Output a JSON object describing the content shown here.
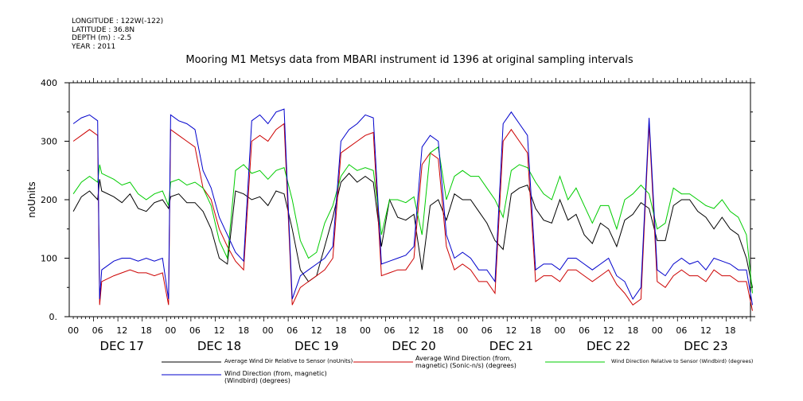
{
  "header": {
    "longitude": "LONGITUDE : 122W(-122)",
    "latitude": "LATITUDE : 36.8N",
    "depth": "DEPTH (m) : -2.5",
    "year": "YEAR : 2011"
  },
  "chart_data": {
    "type": "line",
    "title": "Mooring M1 Metsys data from MBARI instrument id 1396 at original sampling intervals",
    "ylabel": "noUnits",
    "xlabel": "",
    "ylim": [
      0,
      400
    ],
    "yticks": [
      0,
      100,
      200,
      300,
      400
    ],
    "ytick_labels": [
      "0.",
      "100",
      "200",
      "300",
      "400"
    ],
    "xlim": [
      0,
      168
    ],
    "hour_ticks": [
      "00",
      "06",
      "12",
      "18",
      "00",
      "06",
      "12",
      "18",
      "00",
      "06",
      "12",
      "18",
      "00",
      "06",
      "12",
      "18",
      "00",
      "06",
      "12",
      "18",
      "00",
      "06",
      "12",
      "18",
      "00",
      "06",
      "12",
      "18"
    ],
    "day_labels": [
      "DEC 17",
      "DEC 18",
      "DEC 19",
      "DEC 20",
      "DEC 21",
      "DEC 22",
      "DEC 23"
    ],
    "grid": false,
    "legend_position": "bottom",
    "series": [
      {
        "name": "Average Wind Dir Relative to Sensor (noUnits)",
        "color": "#000000",
        "x": [
          0,
          2,
          4,
          6,
          6.5,
          7,
          10,
          12,
          14,
          16,
          18,
          20,
          22,
          23.5,
          24,
          26,
          28,
          30,
          32,
          34,
          36,
          38,
          40,
          42,
          44,
          46,
          48,
          50,
          52,
          54,
          56,
          58,
          60,
          62,
          64,
          66,
          68,
          70,
          72,
          74,
          76,
          78,
          80,
          82,
          84,
          86,
          88,
          90,
          92,
          94,
          96,
          98,
          100,
          102,
          104,
          106,
          108,
          110,
          112,
          114,
          116,
          118,
          120,
          122,
          124,
          126,
          128,
          130,
          132,
          134,
          136,
          138,
          140,
          142,
          144,
          146,
          148,
          150,
          152,
          154,
          156,
          158,
          160,
          162,
          164,
          166,
          167.5
        ],
        "values": [
          180,
          205,
          215,
          200,
          235,
          215,
          205,
          195,
          210,
          185,
          180,
          195,
          200,
          185,
          205,
          210,
          195,
          195,
          180,
          150,
          100,
          90,
          215,
          210,
          200,
          205,
          190,
          215,
          210,
          150,
          80,
          60,
          70,
          120,
          170,
          230,
          245,
          230,
          240,
          230,
          120,
          200,
          170,
          165,
          175,
          80,
          190,
          200,
          165,
          210,
          200,
          200,
          180,
          160,
          130,
          115,
          210,
          220,
          225,
          185,
          165,
          160,
          200,
          165,
          175,
          140,
          125,
          160,
          150,
          120,
          165,
          175,
          195,
          185,
          130,
          130,
          190,
          200,
          200,
          180,
          170,
          150,
          170,
          150,
          140,
          100,
          50
        ]
      },
      {
        "name": "Average Wind Direction (from, magnetic) (Sonic-n/s) (degrees)",
        "color": "#cc0000",
        "x": [
          0,
          2,
          4,
          6,
          6.5,
          7,
          10,
          12,
          14,
          16,
          18,
          20,
          22,
          23.5,
          24,
          26,
          28,
          30,
          32,
          34,
          36,
          38,
          40,
          42,
          44,
          46,
          48,
          50,
          52,
          54,
          56,
          58,
          60,
          62,
          64,
          66,
          68,
          70,
          72,
          74,
          76,
          78,
          80,
          82,
          84,
          86,
          88,
          90,
          92,
          94,
          96,
          98,
          100,
          102,
          104,
          106,
          108,
          110,
          112,
          114,
          116,
          118,
          120,
          122,
          124,
          126,
          128,
          130,
          132,
          134,
          136,
          138,
          140,
          142,
          144,
          146,
          148,
          150,
          152,
          154,
          156,
          158,
          160,
          162,
          164,
          166,
          167.5
        ],
        "values": [
          300,
          310,
          320,
          310,
          20,
          60,
          70,
          75,
          80,
          75,
          75,
          70,
          75,
          20,
          320,
          310,
          300,
          290,
          220,
          200,
          150,
          120,
          95,
          80,
          300,
          310,
          300,
          320,
          330,
          20,
          50,
          60,
          70,
          80,
          100,
          280,
          290,
          300,
          310,
          315,
          70,
          75,
          80,
          80,
          100,
          260,
          280,
          270,
          120,
          80,
          90,
          80,
          60,
          60,
          40,
          300,
          320,
          300,
          280,
          60,
          70,
          70,
          60,
          80,
          80,
          70,
          60,
          70,
          80,
          55,
          40,
          20,
          30,
          330,
          60,
          50,
          70,
          80,
          70,
          70,
          60,
          80,
          70,
          70,
          60,
          60,
          10
        ]
      },
      {
        "name": "Wind Direction Relative to Sensor (Windbird) (degrees)",
        "color": "#00cc00",
        "x": [
          0,
          2,
          4,
          6,
          6.5,
          7,
          10,
          12,
          14,
          16,
          18,
          20,
          22,
          23.5,
          24,
          26,
          28,
          30,
          32,
          34,
          36,
          38,
          40,
          42,
          44,
          46,
          48,
          50,
          52,
          54,
          56,
          58,
          60,
          62,
          64,
          66,
          68,
          70,
          72,
          74,
          76,
          78,
          80,
          82,
          84,
          86,
          88,
          90,
          92,
          94,
          96,
          98,
          100,
          102,
          104,
          106,
          108,
          110,
          112,
          114,
          116,
          118,
          120,
          122,
          124,
          126,
          128,
          130,
          132,
          134,
          136,
          138,
          140,
          142,
          144,
          146,
          148,
          150,
          152,
          154,
          156,
          158,
          160,
          162,
          164,
          166,
          167.5
        ],
        "values": [
          210,
          230,
          240,
          230,
          260,
          245,
          235,
          225,
          230,
          210,
          200,
          210,
          215,
          190,
          230,
          235,
          225,
          230,
          220,
          190,
          130,
          100,
          250,
          260,
          245,
          250,
          235,
          250,
          255,
          200,
          130,
          100,
          110,
          160,
          190,
          240,
          260,
          250,
          255,
          250,
          140,
          200,
          200,
          195,
          205,
          140,
          280,
          290,
          200,
          240,
          250,
          240,
          240,
          220,
          200,
          170,
          250,
          260,
          255,
          230,
          210,
          200,
          240,
          200,
          220,
          190,
          160,
          190,
          190,
          150,
          200,
          210,
          225,
          210,
          150,
          160,
          220,
          210,
          210,
          200,
          190,
          185,
          200,
          180,
          170,
          140,
          40
        ]
      },
      {
        "name": "Wind Direction (from, magnetic) (Windbird) (degrees)",
        "color": "#0000cc",
        "x": [
          0,
          2,
          4,
          6,
          6.5,
          7,
          10,
          12,
          14,
          16,
          18,
          20,
          22,
          23.5,
          24,
          26,
          28,
          30,
          32,
          34,
          36,
          38,
          40,
          42,
          44,
          46,
          48,
          50,
          52,
          54,
          56,
          58,
          60,
          62,
          64,
          66,
          68,
          70,
          72,
          74,
          76,
          78,
          80,
          82,
          84,
          86,
          88,
          90,
          92,
          94,
          96,
          98,
          100,
          102,
          104,
          106,
          108,
          110,
          112,
          114,
          116,
          118,
          120,
          122,
          124,
          126,
          128,
          130,
          132,
          134,
          136,
          138,
          140,
          142,
          144,
          146,
          148,
          150,
          152,
          154,
          156,
          158,
          160,
          162,
          164,
          166,
          167.5
        ],
        "values": [
          330,
          340,
          345,
          335,
          30,
          80,
          95,
          100,
          100,
          95,
          100,
          95,
          100,
          30,
          345,
          335,
          330,
          320,
          250,
          220,
          170,
          140,
          110,
          95,
          335,
          345,
          330,
          350,
          355,
          30,
          70,
          80,
          90,
          100,
          120,
          300,
          320,
          330,
          345,
          340,
          90,
          95,
          100,
          105,
          120,
          290,
          310,
          300,
          140,
          100,
          110,
          100,
          80,
          80,
          60,
          330,
          350,
          330,
          310,
          80,
          90,
          90,
          80,
          100,
          100,
          90,
          80,
          90,
          100,
          70,
          60,
          30,
          50,
          340,
          80,
          70,
          90,
          100,
          90,
          95,
          80,
          100,
          95,
          90,
          80,
          80,
          20
        ]
      }
    ]
  }
}
